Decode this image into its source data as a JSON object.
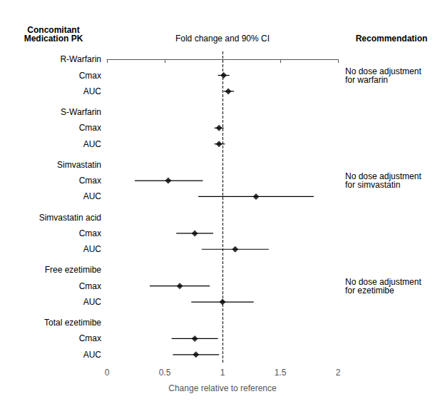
{
  "chart_data": {
    "type": "forest",
    "xlabel": "Change relative to reference",
    "headers": [
      "Concomitant\nMedication PK",
      "Fold change and 90% CI",
      "Recommendation"
    ],
    "xlim": [
      0,
      2
    ],
    "xticks": [
      0,
      0.5,
      1,
      1.5,
      2
    ],
    "reference_x": 1,
    "grid": false,
    "color": "#000000",
    "marker": "diamond",
    "groups": [
      {
        "name": "R-Warfarin",
        "recommendation": "No dose adjustment\nfor warfarin",
        "rows": [
          {
            "label": "Cmax",
            "value": 1.01,
            "lo": 0.96,
            "hi": 1.06
          },
          {
            "label": "AUC",
            "value": 1.05,
            "lo": 1.01,
            "hi": 1.1
          }
        ]
      },
      {
        "name": "S-Warfarin",
        "rows": [
          {
            "label": "Cmax",
            "value": 0.97,
            "lo": 0.93,
            "hi": 1.01
          },
          {
            "label": "AUC",
            "value": 0.97,
            "lo": 0.93,
            "hi": 1.02
          }
        ]
      },
      {
        "name": "Simvastatin",
        "recommendation": "No dose adjustment\nfor simvastatin",
        "rows": [
          {
            "label": "Cmax",
            "value": 0.53,
            "lo": 0.24,
            "hi": 0.83
          },
          {
            "label": "AUC",
            "value": 1.29,
            "lo": 0.79,
            "hi": 1.79
          }
        ]
      },
      {
        "name": "Simvastatin acid",
        "rows": [
          {
            "label": "Cmax",
            "value": 0.76,
            "lo": 0.6,
            "hi": 0.92
          },
          {
            "label": "AUC",
            "value": 1.11,
            "lo": 0.82,
            "hi": 1.4
          }
        ]
      },
      {
        "name": "Free ezetimibe",
        "recommendation": "No dose adjustment\nfor ezetimibe",
        "rows": [
          {
            "label": "Cmax",
            "value": 0.63,
            "lo": 0.37,
            "hi": 0.89
          },
          {
            "label": "AUC",
            "value": 1.0,
            "lo": 0.73,
            "hi": 1.27
          }
        ]
      },
      {
        "name": "Total ezetimibe",
        "rows": [
          {
            "label": "Cmax",
            "value": 0.76,
            "lo": 0.56,
            "hi": 0.96
          },
          {
            "label": "AUC",
            "value": 0.77,
            "lo": 0.57,
            "hi": 0.97
          }
        ]
      }
    ]
  }
}
